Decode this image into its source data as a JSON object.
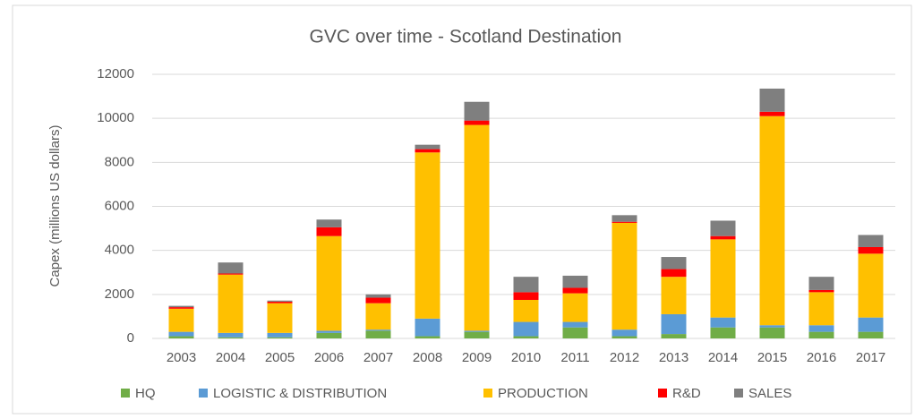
{
  "chart_data": {
    "type": "stacked_bar",
    "title": "GVC over time - Scotland Destination",
    "y_label": "Capex (millions US dollars)",
    "categories": [
      "2003",
      "2004",
      "2005",
      "2006",
      "2007",
      "2008",
      "2009",
      "2010",
      "2011",
      "2012",
      "2013",
      "2014",
      "2015",
      "2016",
      "2017"
    ],
    "series": [
      {
        "name": "HQ",
        "color": "#70ad47",
        "values": [
          100,
          50,
          50,
          250,
          350,
          100,
          300,
          100,
          500,
          100,
          200,
          500,
          500,
          300,
          300
        ]
      },
      {
        "name": "LOGISTIC & DISTRIBUTION",
        "color": "#5b9bd5",
        "values": [
          200,
          200,
          200,
          100,
          50,
          800,
          50,
          650,
          250,
          300,
          900,
          450,
          100,
          300,
          650
        ]
      },
      {
        "name": "PRODUCTION",
        "color": "#ffc000",
        "values": [
          1050,
          2650,
          1350,
          4300,
          1200,
          7550,
          9350,
          1000,
          1300,
          4850,
          1700,
          3550,
          9500,
          1500,
          2900
        ]
      },
      {
        "name": "R&D",
        "color": "#ff0000",
        "values": [
          70,
          50,
          70,
          400,
          250,
          150,
          200,
          350,
          250,
          50,
          350,
          150,
          200,
          100,
          300
        ]
      },
      {
        "name": "SALES",
        "color": "#7f7f7f",
        "values": [
          60,
          500,
          50,
          350,
          150,
          200,
          850,
          700,
          550,
          300,
          550,
          700,
          1050,
          600,
          550
        ]
      }
    ],
    "ylim": [
      0,
      12000
    ],
    "yticks": [
      0,
      2000,
      4000,
      6000,
      8000,
      10000,
      12000
    ],
    "grid": true
  }
}
